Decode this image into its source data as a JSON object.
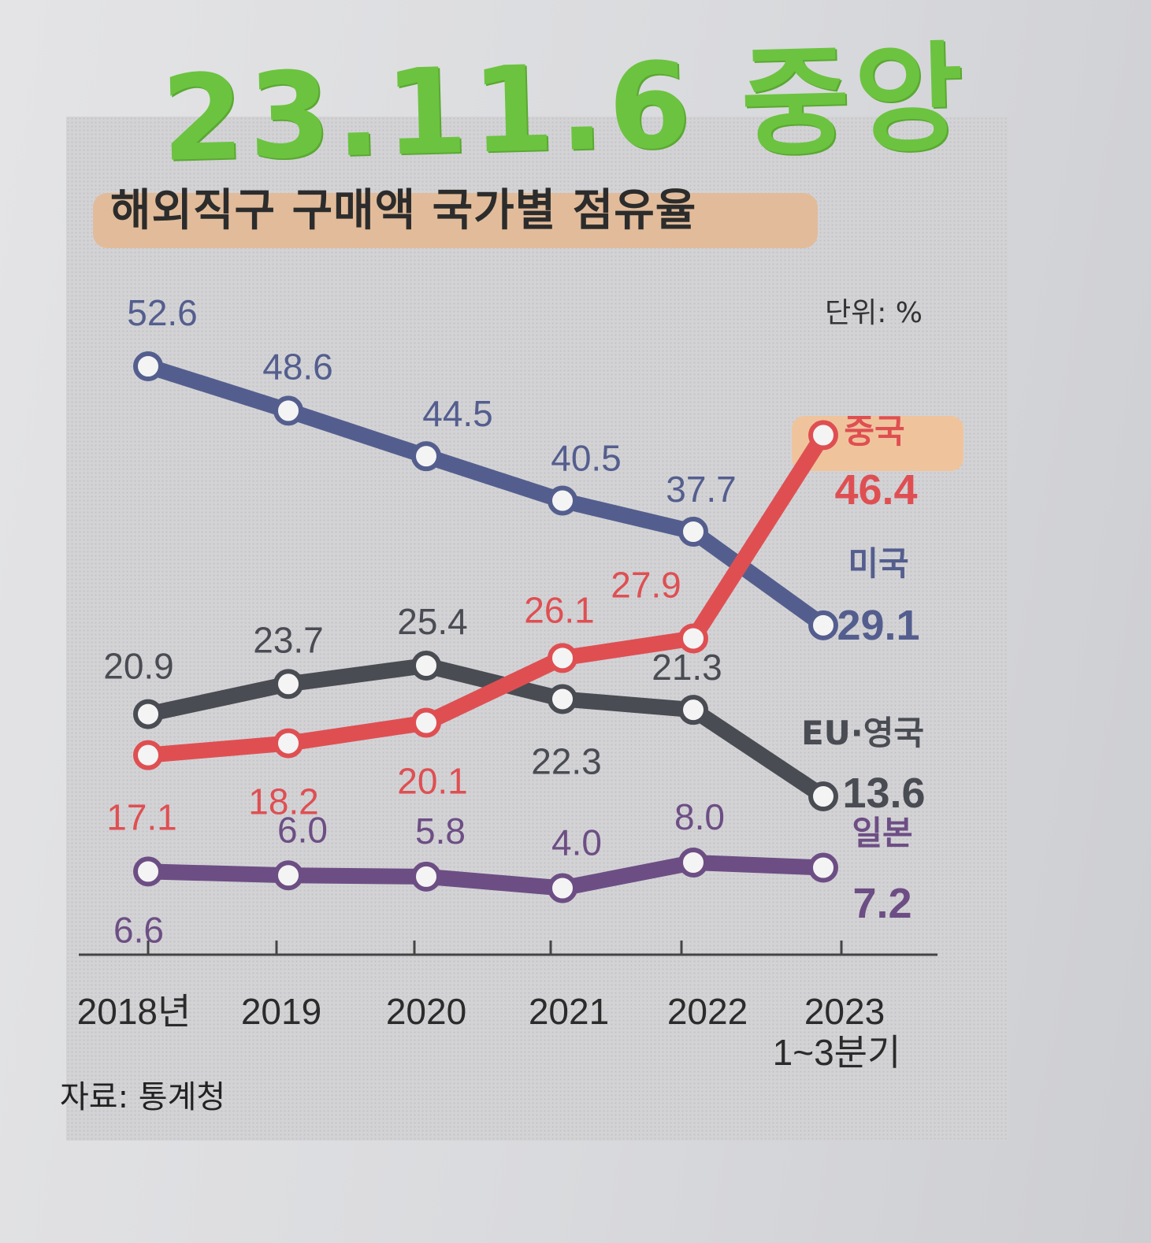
{
  "handwritten_note": "23.11.6 중앙",
  "chart_data": {
    "type": "line",
    "title": "해외직구 구매액 국가별 점유율",
    "unit_label": "단위: %",
    "source": "자료: 통계청",
    "categories": [
      "2018년",
      "2019",
      "2020",
      "2021",
      "2022",
      "2023"
    ],
    "last_category_sub": "1~3분기",
    "ylim": [
      0,
      55
    ],
    "grid": false,
    "legend": "end-of-line labels",
    "series": [
      {
        "name": "미국",
        "color": "#545e8e",
        "values": [
          52.6,
          48.6,
          44.5,
          40.5,
          37.7,
          29.1
        ],
        "labels": [
          "52.6",
          "48.6",
          "44.5",
          "40.5",
          "37.7",
          "29.1"
        ]
      },
      {
        "name": "중국",
        "color": "#df4f52",
        "values": [
          17.1,
          18.2,
          20.1,
          26.1,
          27.9,
          46.4
        ],
        "labels": [
          "17.1",
          "18.2",
          "20.1",
          "26.1",
          "27.9",
          "46.4"
        ]
      },
      {
        "name": "EU·영국",
        "color": "#4a4c53",
        "values": [
          20.9,
          23.7,
          25.4,
          22.3,
          21.3,
          13.6
        ],
        "labels": [
          "20.9",
          "23.7",
          "25.4",
          "22.3",
          "21.3",
          "13.6"
        ]
      },
      {
        "name": "일본",
        "color": "#6d4e84",
        "values": [
          6.6,
          6.0,
          5.8,
          4.0,
          8.0,
          7.2
        ],
        "labels": [
          "6.6",
          "6.0",
          "5.8",
          "4.0",
          "8.0",
          "7.2"
        ]
      }
    ]
  }
}
